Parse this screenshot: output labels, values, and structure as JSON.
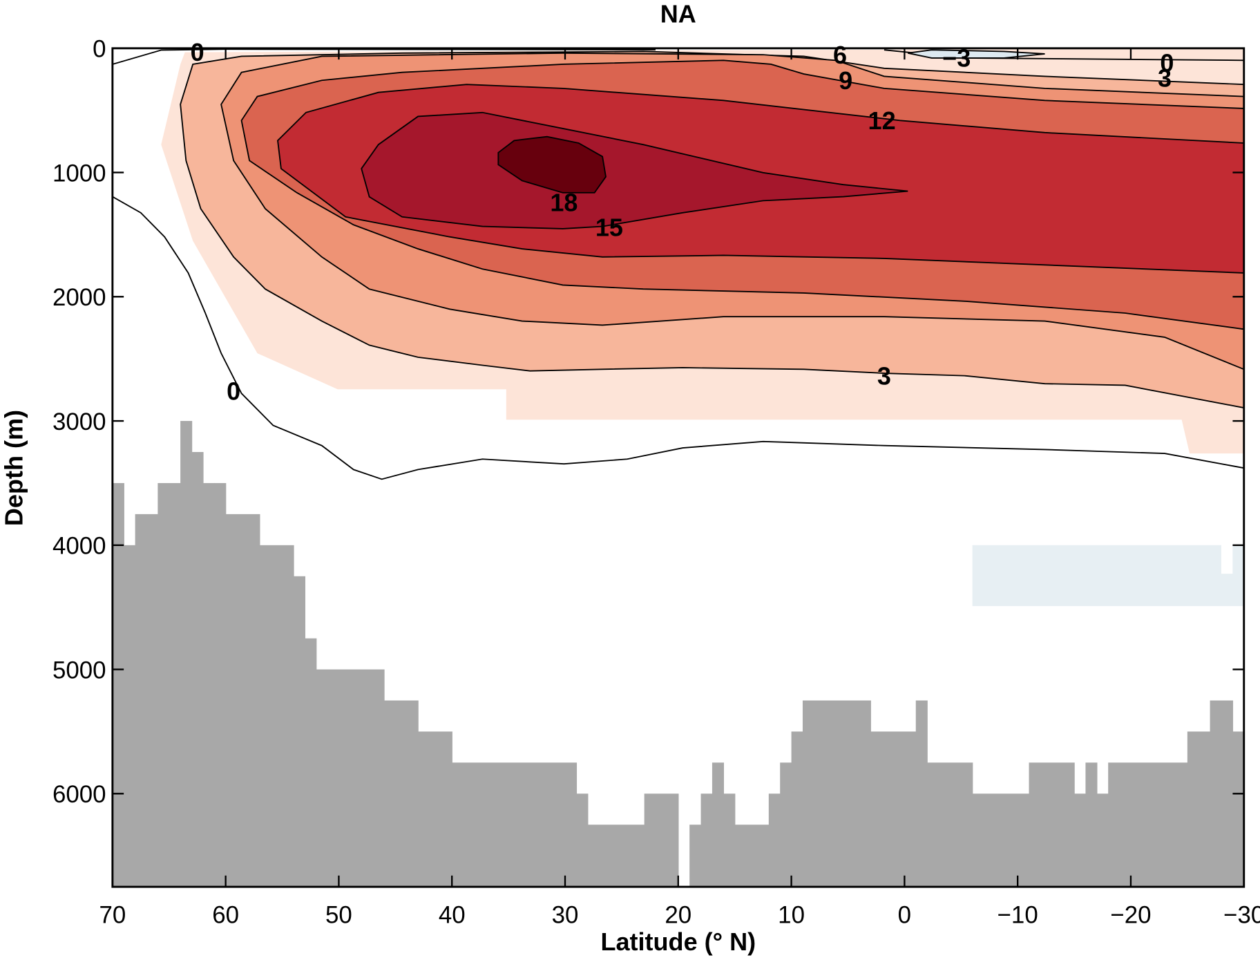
{
  "chart_data": {
    "type": "contour",
    "title": "NA",
    "xlabel": "Latitude (° N)",
    "ylabel": "Depth (m)",
    "xlim": [
      70,
      -30
    ],
    "ylim": [
      0,
      6750
    ],
    "xticks": [
      70,
      60,
      50,
      40,
      30,
      20,
      10,
      0,
      {
        "value": -10,
        "label": "−10"
      },
      {
        "value": -20,
        "label": "−20"
      },
      {
        "value": -30,
        "label": "−30"
      }
    ],
    "yticks": [
      0,
      1000,
      2000,
      3000,
      4000,
      5000,
      6000
    ],
    "regions": [
      {
        "color": "#fde4d8",
        "x": [
          64.0,
          65.7,
          62.9,
          57.2,
          50.1,
          35.2,
          35.2,
          -24.5,
          -25.2,
          -30,
          -30,
          63.6
        ],
        "y": [
          129,
          775,
          1550,
          2455,
          2745,
          2745,
          2990,
          2990,
          3262,
          3262,
          0,
          32
        ]
      },
      {
        "color": "#e7eff3",
        "x": [
          -6,
          -28,
          -28,
          -29,
          -29,
          -30,
          -30,
          -6
        ],
        "y": [
          4000,
          4000,
          4230,
          4230,
          4000,
          4000,
          4490,
          4490
        ]
      }
    ],
    "contours": [
      {
        "level": 3,
        "fill": "#f7b69b",
        "x": [
          -30,
          -19.5,
          -12.4,
          -5.3,
          1.8,
          8.9,
          19.6,
          26.7,
          33.1,
          37.3,
          43.0,
          47.3,
          51.5,
          56.5,
          59.3,
          62.2,
          63.5,
          64.0,
          62.9,
          58.6,
          44.4,
          23.1,
          8.9,
          1.8,
          -12.4,
          -30
        ],
        "y": [
          2894,
          2713,
          2700,
          2636,
          2616,
          2584,
          2571,
          2584,
          2597,
          2552,
          2487,
          2390,
          2196,
          1938,
          1680,
          1292,
          904,
          452,
          129,
          65,
          39,
          26,
          65,
          161,
          226,
          291
        ]
      },
      {
        "level": 6,
        "fill": "#ee9375",
        "x": [
          -30,
          -23.0,
          -12.4,
          1.8,
          16.0,
          26.7,
          33.8,
          40.2,
          47.3,
          51.5,
          56.5,
          59.3,
          60.4,
          58.6,
          51.5,
          30.2,
          12.5,
          6.1,
          1.8,
          -12.4,
          -30
        ],
        "y": [
          2584,
          2326,
          2196,
          2161,
          2161,
          2229,
          2196,
          2100,
          1938,
          1680,
          1292,
          904,
          452,
          194,
          65,
          39,
          52,
          97,
          226,
          323,
          388
        ]
      },
      {
        "level": 9,
        "fill": "#da6450",
        "x": [
          -30,
          -19.5,
          -5.3,
          8.9,
          23.1,
          30.2,
          37.3,
          43.0,
          48.7,
          53.7,
          57.9,
          58.6,
          57.2,
          51.5,
          44.4,
          30.2,
          16.0,
          11.8,
          8.9,
          1.8,
          -12.4,
          -30
        ],
        "y": [
          2261,
          2132,
          2036,
          1970,
          1938,
          1906,
          1777,
          1615,
          1421,
          1163,
          904,
          581,
          388,
          258,
          194,
          129,
          97,
          129,
          207,
          323,
          420,
          485
        ]
      },
      {
        "level": 12,
        "fill": "#c22b33",
        "x": [
          -30,
          -12.4,
          1.8,
          16.0,
          26.7,
          33.8,
          40.2,
          49.4,
          55.1,
          55.4,
          52.9,
          46.5,
          38.7,
          30.2,
          16.0,
          0.4,
          -12.4,
          -30
        ],
        "y": [
          1809,
          1744,
          1692,
          1667,
          1680,
          1615,
          1518,
          1357,
          969,
          743,
          517,
          355,
          291,
          323,
          420,
          581,
          679,
          763
        ]
      },
      {
        "level": 15,
        "fill": "#a5172c",
        "x": [
          -0.3,
          5.4,
          12.5,
          23.1,
          30.2,
          37.3,
          43.0,
          46.5,
          48.0,
          47.3,
          44.4,
          37.3,
          30.2,
          26.7,
          19.6,
          12.5,
          5.4,
          -0.3
        ],
        "y": [
          1150,
          1098,
          1001,
          775,
          646,
          517,
          549,
          775,
          969,
          1196,
          1357,
          1434,
          1453,
          1434,
          1324,
          1227,
          1195,
          1150
        ]
      },
      {
        "level": 18,
        "fill": "#67000d",
        "x": [
          35.9,
          34.5,
          31.6,
          28.8,
          26.7,
          26.4,
          27.4,
          30.2,
          33.8,
          35.9
        ],
        "y": [
          840,
          743,
          711,
          763,
          872,
          1034,
          1163,
          1163,
          1066,
          937
        ]
      },
      {
        "level": 0,
        "fill": "none",
        "x": [
          70,
          67.5,
          65.4,
          63.3,
          61.8,
          60.4,
          58.6,
          55.8,
          51.5,
          48.7,
          46.2,
          43.0,
          37.3,
          30.1,
          24.5,
          19.6,
          12.5,
          1.8,
          -12.4,
          -23.0,
          -30
        ],
        "y": [
          1195,
          1324,
          1518,
          1809,
          2132,
          2455,
          2778,
          3036,
          3198,
          3391,
          3469,
          3391,
          3307,
          3346,
          3307,
          3217,
          3165,
          3198,
          3230,
          3262,
          3379
        ]
      },
      {
        "level": 0,
        "fill": "none",
        "x": [
          70,
          65.7,
          60,
          40,
          22
        ],
        "y": [
          129,
          15,
          8,
          10,
          12
        ]
      },
      {
        "level": 0,
        "fill": "none",
        "x": [
          1.8,
          -5.3,
          -30
        ],
        "y": [
          13,
          78,
          97
        ]
      },
      {
        "level": -3,
        "fill": "#dde9f0",
        "x": [
          -0.3,
          -2.4,
          -8.8,
          -12.4,
          -8.8,
          -2.4,
          -0.3
        ],
        "y": [
          39,
          13,
          26,
          45,
          78,
          78,
          39
        ]
      }
    ],
    "contour_labels": {
      "x": [
        62.5,
        5.7,
        -4.6,
        -23.2,
        -23.0,
        5.2,
        2.0,
        30.1,
        26.1,
        1.8,
        59.3
      ],
      "y": [
        30,
        52,
        78,
        116,
        239,
        258,
        581,
        1240,
        1440,
        2636,
        2758
      ],
      "value_labels": [
        "0",
        "6",
        "−3",
        "0",
        "3",
        "9",
        "12",
        "18",
        "15",
        "3",
        "0"
      ]
    },
    "bathymetry": {
      "color": "#a8a8a8",
      "edges": [
        70,
        69,
        68,
        66,
        64,
        63,
        62,
        61,
        60,
        57,
        54,
        53,
        52,
        46,
        43,
        40,
        29,
        28,
        23,
        20,
        19,
        18,
        17,
        16,
        15,
        12,
        11,
        10,
        9,
        3,
        -1,
        -2,
        -6,
        -11,
        -15,
        -16,
        -17,
        -18,
        -25,
        -27,
        -29,
        -30
      ],
      "values": [
        3500,
        4000,
        3750,
        3500,
        3000,
        3250,
        3500,
        3500,
        3750,
        4000,
        4250,
        4750,
        5000,
        5250,
        5500,
        5750,
        6000,
        6250,
        6000,
        null,
        6250,
        6000,
        5750,
        6000,
        6250,
        6000,
        5750,
        5500,
        5250,
        5500,
        5250,
        5750,
        6000,
        5750,
        6000,
        5750,
        6000,
        5750,
        5500,
        5250,
        5500
      ]
    }
  }
}
